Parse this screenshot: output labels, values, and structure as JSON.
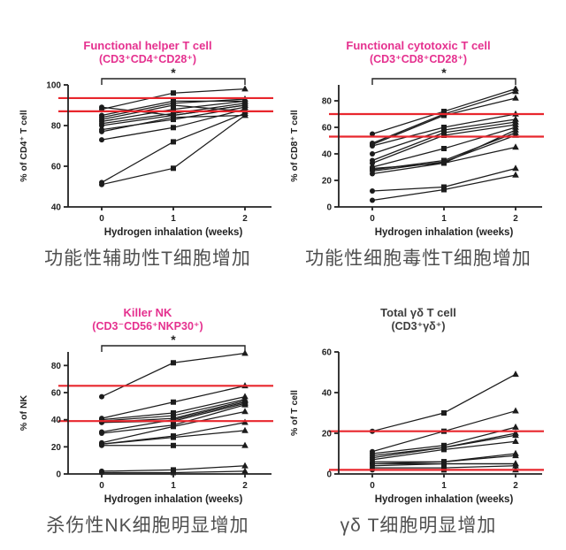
{
  "figure": {
    "background": "#ffffff",
    "description_visible_text_only": true
  },
  "colors": {
    "accent_magenta": "#e5318f",
    "ref_red": "#e8262d",
    "series_black": "#1c1c1c",
    "axis_black": "#222222",
    "title_dark": "#3d3d3d",
    "caption_gray": "#4f4f4f"
  },
  "panels": [
    {
      "title_line1": "Functional helper T cell",
      "title_line2": "(CD3⁺CD4⁺CD28⁺)",
      "title_style": "magenta",
      "caption": "功能性辅助性T细胞增加",
      "chart_data": {
        "type": "line",
        "x": [
          0,
          1,
          2
        ],
        "x_tick_labels": [
          "0",
          "1",
          "2"
        ],
        "xlabel": "Hydrogen inhalation (weeks)",
        "ylabel": "% of CD4⁺ T cell",
        "ylim": [
          40,
          100
        ],
        "yticks": [
          40,
          60,
          80,
          100
        ],
        "ref_lines": [
          93.5,
          87
        ],
        "significance": "*",
        "markers": [
          "circle",
          "square",
          "triangle"
        ],
        "grid": false,
        "series": [
          [
            51,
            59,
            85
          ],
          [
            52,
            72,
            86
          ],
          [
            73,
            79,
            88
          ],
          [
            77,
            84,
            85
          ],
          [
            78,
            83,
            89
          ],
          [
            80,
            85,
            90
          ],
          [
            81,
            86,
            91
          ],
          [
            82,
            88,
            92
          ],
          [
            83,
            90,
            87
          ],
          [
            84,
            91,
            93
          ],
          [
            85,
            92,
            92
          ],
          [
            88,
            96,
            98
          ],
          [
            89,
            85,
            90
          ]
        ]
      }
    },
    {
      "title_line1": "Functional cytotoxic T cell",
      "title_line2": "(CD3⁺CD8⁺CD28⁺)",
      "title_style": "magenta",
      "caption": "功能性细胞毒性T细胞增加",
      "chart_data": {
        "type": "line",
        "x": [
          0,
          1,
          2
        ],
        "x_tick_labels": [
          "0",
          "1",
          "2"
        ],
        "xlabel": "Hydrogen inhalation (weeks)",
        "ylabel": "% of CD8⁺ T cell",
        "ylim": [
          0,
          92
        ],
        "yticks": [
          0,
          20,
          40,
          60,
          80
        ],
        "ref_lines": [
          70,
          53
        ],
        "significance": "*",
        "markers": [
          "circle",
          "square",
          "triangle"
        ],
        "grid": false,
        "series": [
          [
            5,
            13,
            24
          ],
          [
            12,
            15,
            29
          ],
          [
            25,
            33,
            45
          ],
          [
            27,
            34,
            54
          ],
          [
            28,
            35,
            56
          ],
          [
            29,
            33,
            58
          ],
          [
            30,
            44,
            60
          ],
          [
            33,
            54,
            62
          ],
          [
            35,
            56,
            64
          ],
          [
            40,
            58,
            66
          ],
          [
            46,
            60,
            70
          ],
          [
            47,
            69,
            82
          ],
          [
            48,
            70,
            87
          ],
          [
            55,
            72,
            89
          ]
        ]
      }
    },
    {
      "title_line1": "Killer NK",
      "title_line2": "(CD3⁻CD56⁺NKP30⁺)",
      "title_style": "magenta",
      "caption": "杀伤性NK细胞明显增加",
      "chart_data": {
        "type": "line",
        "x": [
          0,
          1,
          2
        ],
        "x_tick_labels": [
          "0",
          "1",
          "2"
        ],
        "xlabel": "Hydrogen inhalation (weeks)",
        "ylabel": "% of NK",
        "ylim": [
          0,
          90
        ],
        "yticks": [
          0,
          20,
          40,
          60,
          80
        ],
        "ref_lines": [
          65,
          39
        ],
        "significance": "*",
        "markers": [
          "circle",
          "square",
          "triangle"
        ],
        "grid": false,
        "series": [
          [
            57,
            82,
            89
          ],
          [
            41,
            53,
            65
          ],
          [
            40,
            45,
            57
          ],
          [
            39,
            43,
            55
          ],
          [
            38,
            41,
            54
          ],
          [
            38,
            39,
            52
          ],
          [
            31,
            40,
            53
          ],
          [
            30,
            36,
            51
          ],
          [
            23,
            35,
            46
          ],
          [
            22,
            28,
            38
          ],
          [
            22,
            27,
            32
          ],
          [
            21,
            21,
            21
          ],
          [
            2,
            3,
            6
          ],
          [
            1,
            1,
            2
          ]
        ]
      }
    },
    {
      "title_line1": "Total γδ T cell",
      "title_line2": "(CD3⁺γδ⁺)",
      "title_style": "dark",
      "caption": "γδ T细胞明显增加",
      "chart_data": {
        "type": "line",
        "x": [
          0,
          1,
          2
        ],
        "x_tick_labels": [
          "0",
          "1",
          "2"
        ],
        "xlabel": "Hydrogen inhalation (weeks)",
        "ylabel": "% of T cell",
        "ylim": [
          0,
          60
        ],
        "yticks": [
          0,
          20,
          40,
          60
        ],
        "ref_lines": [
          21,
          2
        ],
        "significance": null,
        "markers": [
          "circle",
          "square",
          "triangle"
        ],
        "grid": false,
        "series": [
          [
            21,
            30,
            49
          ],
          [
            11,
            21,
            31
          ],
          [
            10,
            14,
            23
          ],
          [
            9,
            13,
            20
          ],
          [
            8,
            13,
            19
          ],
          [
            7,
            12,
            16
          ],
          [
            6,
            6,
            10
          ],
          [
            5,
            6,
            9
          ],
          [
            5,
            5,
            5
          ],
          [
            4,
            5,
            5
          ],
          [
            3,
            3,
            4
          ],
          [
            2,
            2,
            2
          ]
        ]
      }
    }
  ]
}
